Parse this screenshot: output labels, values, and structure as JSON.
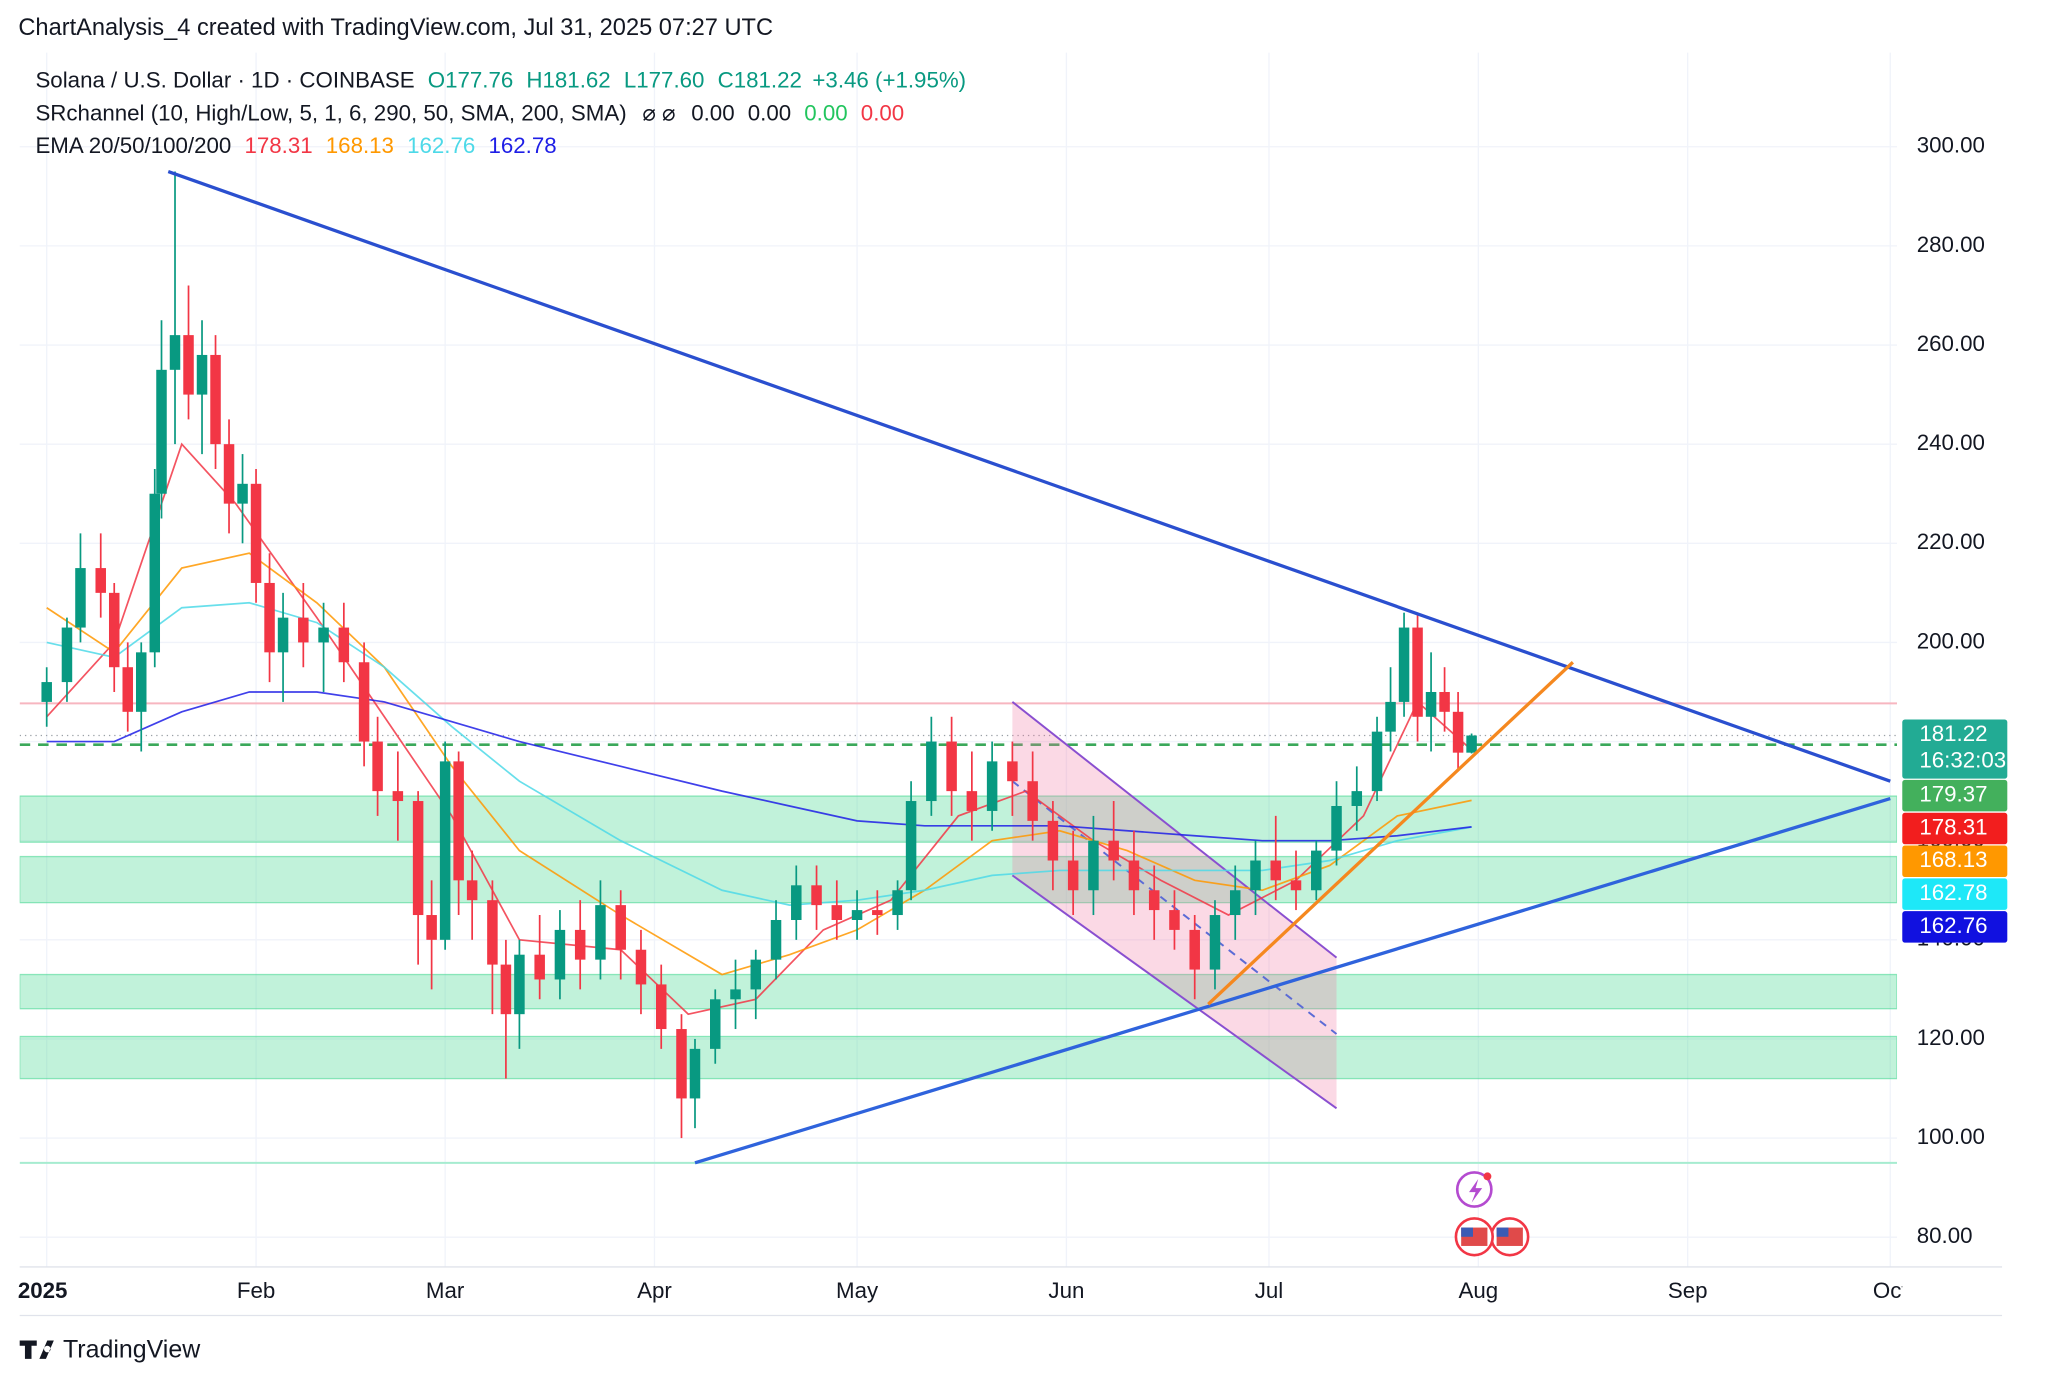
{
  "header": {
    "title": "ChartAnalysis_4 created with TradingView.com, Jul 31, 2025 07:27 UTC",
    "symbol": "Solana / U.S. Dollar · 1D · COINBASE",
    "ohlc": [
      "O177.76",
      "H181.62",
      "L177.60",
      "C181.22",
      "+3.46 (+1.95%)"
    ],
    "sr_label": "SRchannel (10, High/Low, 5, 1, 6, 290, 50, SMA, 200, SMA)",
    "sr_icons": "⌀ ⌀",
    "sr_values": [
      "0.00",
      "0.00",
      "0.00",
      "0.00"
    ],
    "ema_label": "EMA 20/50/100/200"
  },
  "chart_data": {
    "type": "candlestick",
    "x": [
      0,
      3,
      5,
      8,
      10,
      12,
      14,
      16,
      17,
      19,
      21,
      23,
      25,
      27,
      29,
      31,
      33,
      35,
      38,
      41,
      44,
      47,
      49,
      52,
      55,
      57,
      59,
      61,
      63,
      66,
      68,
      70,
      73,
      76,
      79,
      82,
      85,
      88,
      91,
      94,
      96,
      99,
      102,
      105,
      108,
      111,
      114,
      117,
      120,
      123,
      126,
      128,
      131,
      134,
      137,
      140,
      143,
      146,
      149,
      152,
      155,
      158,
      161,
      164,
      167,
      170,
      173,
      176,
      179,
      182,
      185,
      188,
      191,
      194,
      197,
      199,
      201,
      203,
      205,
      207,
      209,
      211
    ],
    "open": [
      188,
      192,
      203,
      215,
      210,
      195,
      186,
      198,
      230,
      255,
      262,
      250,
      258,
      240,
      228,
      232,
      212,
      198,
      205,
      200,
      203,
      196,
      180,
      170,
      168,
      145,
      140,
      176,
      152,
      148,
      135,
      125,
      137,
      132,
      142,
      136,
      147,
      138,
      131,
      122,
      108,
      118,
      128,
      130,
      136,
      144,
      151,
      147,
      144,
      146,
      145,
      150,
      168,
      180,
      170,
      166,
      176,
      172,
      164,
      156,
      150,
      160,
      156,
      150,
      146,
      142,
      134,
      145,
      150,
      156,
      152,
      150,
      158,
      167,
      170,
      182,
      188,
      203,
      185,
      190,
      186,
      177.76
    ],
    "high": [
      195,
      205,
      222,
      222,
      212,
      200,
      200,
      235,
      265,
      295,
      272,
      265,
      262,
      245,
      238,
      235,
      218,
      210,
      212,
      208,
      208,
      200,
      185,
      178,
      170,
      152,
      180,
      178,
      158,
      152,
      140,
      140,
      145,
      146,
      148,
      152,
      150,
      142,
      135,
      125,
      120,
      130,
      136,
      138,
      148,
      155,
      155,
      152,
      150,
      150,
      152,
      172,
      185,
      185,
      178,
      180,
      180,
      178,
      168,
      162,
      165,
      168,
      162,
      155,
      150,
      145,
      148,
      155,
      160,
      165,
      158,
      160,
      172,
      175,
      185,
      195,
      206,
      206,
      198,
      195,
      190,
      181.62
    ],
    "low": [
      183,
      188,
      200,
      205,
      190,
      182,
      178,
      195,
      225,
      240,
      245,
      238,
      235,
      222,
      220,
      208,
      192,
      188,
      195,
      190,
      192,
      175,
      165,
      160,
      135,
      130,
      138,
      145,
      140,
      125,
      112,
      118,
      128,
      128,
      130,
      132,
      132,
      125,
      118,
      100,
      102,
      115,
      122,
      124,
      132,
      140,
      142,
      140,
      140,
      141,
      142,
      148,
      165,
      165,
      160,
      162,
      165,
      160,
      150,
      145,
      145,
      152,
      145,
      140,
      138,
      128,
      130,
      140,
      145,
      148,
      146,
      148,
      155,
      162,
      168,
      178,
      185,
      180,
      178,
      182,
      174,
      177.6
    ],
    "close": [
      192,
      203,
      215,
      210,
      195,
      186,
      198,
      230,
      255,
      262,
      250,
      258,
      240,
      228,
      232,
      212,
      198,
      205,
      200,
      203,
      196,
      180,
      170,
      168,
      145,
      140,
      176,
      152,
      148,
      135,
      125,
      137,
      132,
      142,
      136,
      147,
      138,
      131,
      122,
      108,
      118,
      128,
      130,
      136,
      144,
      151,
      147,
      144,
      146,
      145,
      150,
      168,
      180,
      170,
      166,
      176,
      172,
      164,
      156,
      150,
      160,
      156,
      150,
      146,
      142,
      134,
      145,
      150,
      156,
      152,
      150,
      158,
      167,
      170,
      182,
      188,
      203,
      185,
      190,
      186,
      177.76,
      181.22
    ],
    "up_color": "#089981",
    "down_color": "#f23645",
    "lines": [
      {
        "color": "#f23645",
        "last": 178.31,
        "x": [
          0,
          10,
          20,
          28,
          40,
          50,
          60,
          70,
          85,
          95,
          105,
          115,
          125,
          135,
          145,
          155,
          165,
          175,
          185,
          195,
          203,
          211
        ],
        "values": [
          185,
          200,
          240,
          228,
          205,
          185,
          165,
          140,
          138,
          125,
          128,
          142,
          148,
          165,
          170,
          160,
          152,
          145,
          152,
          165,
          188,
          178.31
        ]
      },
      {
        "color": "#ff9800",
        "last": 168.13,
        "x": [
          0,
          10,
          20,
          30,
          40,
          50,
          60,
          70,
          85,
          100,
          110,
          120,
          130,
          140,
          150,
          160,
          170,
          180,
          190,
          200,
          211
        ],
        "values": [
          207,
          198,
          215,
          218,
          208,
          195,
          175,
          158,
          145,
          133,
          137,
          142,
          150,
          160,
          162,
          158,
          152,
          150,
          155,
          165,
          168.13
        ]
      },
      {
        "color": "#4dd9e8",
        "last": 162.76,
        "x": [
          0,
          10,
          20,
          30,
          40,
          50,
          60,
          70,
          85,
          100,
          110,
          120,
          130,
          140,
          150,
          160,
          170,
          180,
          190,
          200,
          211
        ],
        "values": [
          200,
          197,
          207,
          208,
          204,
          195,
          183,
          172,
          160,
          150,
          147,
          148,
          150,
          153,
          154,
          154,
          154,
          154,
          156,
          160,
          162.76
        ]
      },
      {
        "color": "#1e1ee6",
        "last": 162.78,
        "x": [
          0,
          10,
          20,
          30,
          40,
          50,
          60,
          70,
          85,
          100,
          110,
          120,
          130,
          140,
          150,
          160,
          170,
          180,
          190,
          200,
          211
        ],
        "values": [
          180,
          180,
          186,
          190,
          190,
          188,
          184,
          180,
          175,
          170,
          167,
          164,
          163,
          163,
          163,
          162,
          161,
          160,
          160,
          161,
          162.78
        ]
      }
    ],
    "last_price": 181.22,
    "countdown": "16:32:03",
    "support": 179.37,
    "resistance": 187.7,
    "floor": 95,
    "zones": [
      [
        159.7,
        169
      ],
      [
        147.5,
        156.8
      ],
      [
        126.1,
        133
      ],
      [
        112,
        120.5
      ]
    ],
    "trendlines": [
      {
        "color": "#2a4fcf",
        "points": [
          [
            18,
            295
          ],
          [
            273,
            172
          ]
        ]
      },
      {
        "color": "#2f63dc",
        "points": [
          [
            96,
            95
          ],
          [
            273,
            168.5
          ]
        ]
      },
      {
        "color": "#f5881f",
        "points": [
          [
            172,
            127
          ],
          [
            226,
            196
          ]
        ]
      }
    ],
    "channel": {
      "top": [
        [
          143,
          188
        ],
        [
          191,
          136.4
        ]
      ],
      "bottom": [
        [
          143,
          153
        ],
        [
          191,
          106
        ]
      ],
      "mid": [
        [
          143,
          172
        ],
        [
          191,
          121
        ]
      ]
    },
    "xlim": [
      -4,
      274
    ],
    "xticks": [
      {
        "value": 0,
        "label": "2025"
      },
      {
        "value": 31,
        "label": "Feb"
      },
      {
        "value": 59,
        "label": "Mar"
      },
      {
        "value": 90,
        "label": "Apr"
      },
      {
        "value": 120,
        "label": "May"
      },
      {
        "value": 151,
        "label": "Jun"
      },
      {
        "value": 181,
        "label": "Jul"
      },
      {
        "value": 212,
        "label": "Aug"
      },
      {
        "value": 243,
        "label": "Sep"
      },
      {
        "value": 273,
        "label": "Oct"
      }
    ],
    "ylim": [
      74,
      319
    ],
    "yticks": [
      {
        "value": 80,
        "label": "80.00"
      },
      {
        "value": 100,
        "label": "100.00"
      },
      {
        "value": 120,
        "label": "120.00"
      },
      {
        "value": 140,
        "label": "140.00"
      },
      {
        "value": 160,
        "label": "160.00"
      },
      {
        "value": 180,
        "label": "180.00"
      },
      {
        "value": 200,
        "label": "200.00"
      },
      {
        "value": 220,
        "label": "220.00"
      },
      {
        "value": 240,
        "label": "240.00"
      },
      {
        "value": 260,
        "label": "260.00"
      },
      {
        "value": 280,
        "label": "280.00"
      },
      {
        "value": 300,
        "label": "300.00"
      }
    ],
    "grid": true
  },
  "footer": {
    "brand": "TradingView"
  }
}
